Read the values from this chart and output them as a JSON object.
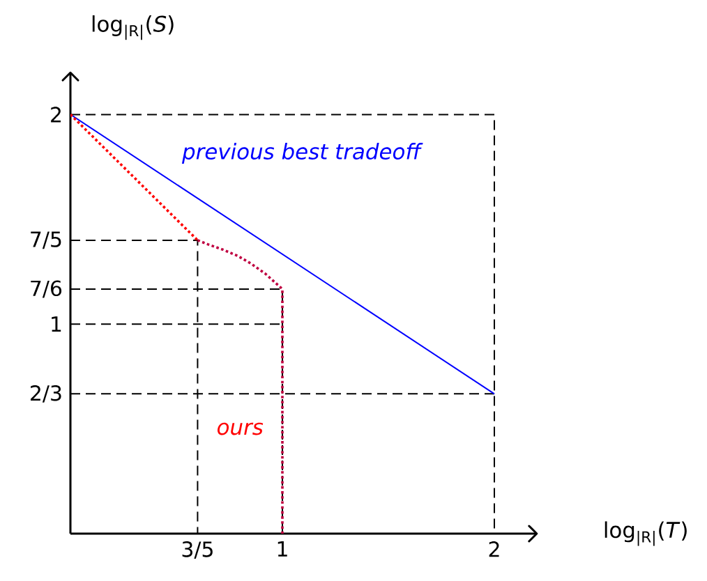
{
  "chart_data": {
    "type": "line",
    "xlabel": "log$_{|R|}$(*T*)",
    "ylabel": "log$_{|R|}$(*S*)",
    "xlim": [
      0,
      2.2
    ],
    "ylim": [
      0,
      2.2
    ],
    "xticks": [
      {
        "value": 0.6,
        "label": "3/5"
      },
      1,
      2
    ],
    "yticks": [
      {
        "value": 0.667,
        "label": "2/3"
      },
      1,
      {
        "value": 1.167,
        "label": "7/6"
      },
      {
        "value": 1.4,
        "label": "7/5"
      },
      2
    ],
    "marker": "none",
    "series": [
      {
        "color": "#000000",
        "line_style": "dashed",
        "x": [
          0,
          2,
          2
        ],
        "values": [
          2,
          2,
          0
        ]
      },
      {
        "color": "#000000",
        "line_style": "dashed",
        "x": [
          0,
          0.6,
          0.6
        ],
        "values": [
          1.4,
          1.4,
          0
        ]
      },
      {
        "color": "#000000",
        "line_style": "dashed",
        "x": [
          0,
          1,
          1
        ],
        "values": [
          1.167,
          1.167,
          0
        ]
      },
      {
        "color": "#000000",
        "line_style": "dashed",
        "x": [
          0,
          1
        ],
        "values": [
          1,
          1
        ]
      },
      {
        "color": "#000000",
        "line_style": "dashed",
        "x": [
          0,
          2
        ],
        "values": [
          0.667,
          0.667
        ]
      },
      {
        "name": "previous best tradeoff",
        "color": "#0000ff",
        "line_style": "solid",
        "x": [
          0,
          2
        ],
        "values": [
          2,
          0.667
        ]
      },
      {
        "name": "ours",
        "color": "#ff0000",
        "line_style": "dotted",
        "x": [
          0,
          0.6
        ],
        "values": [
          2,
          1.4
        ]
      },
      {
        "color": "#bf0040",
        "line_style": "dotted",
        "x": [
          0.6,
          0.65,
          0.72,
          0.79,
          0.85,
          0.92,
          1,
          1
        ],
        "values": [
          1.4,
          1.38,
          1.355,
          1.325,
          1.29,
          1.24,
          1.167,
          0
        ]
      }
    ]
  }
}
